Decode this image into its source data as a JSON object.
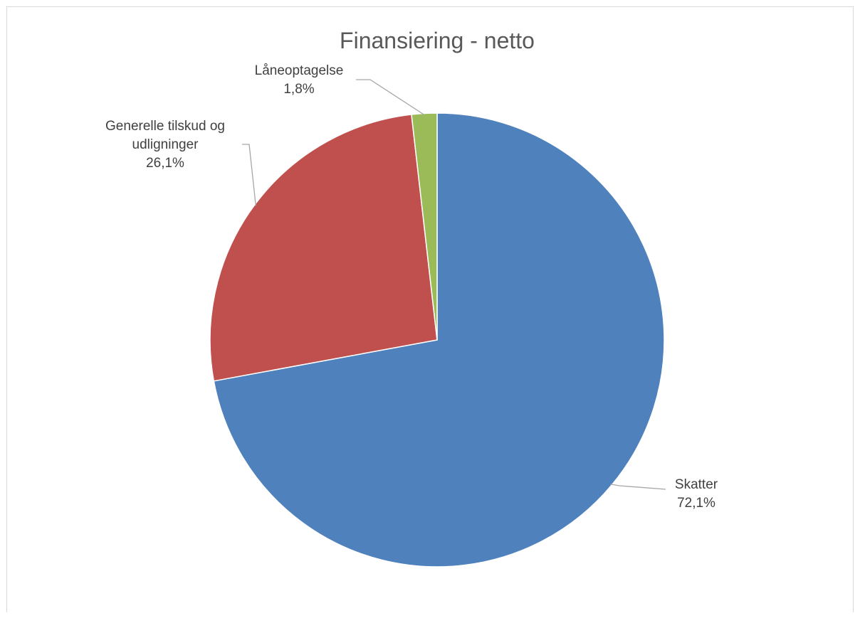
{
  "chart_data": {
    "type": "pie",
    "title": "Finansiering - netto",
    "slices": [
      {
        "label_lines": [
          "Skatter"
        ],
        "value": 72.1,
        "value_label": "72,1%",
        "color": "#4f81bd"
      },
      {
        "label_lines": [
          "Generelle tilskud og",
          "udligninger"
        ],
        "value": 26.1,
        "value_label": "26,1%",
        "color": "#c0504d"
      },
      {
        "label_lines": [
          "Låneoptagelse"
        ],
        "value": 1.8,
        "value_label": "1,8%",
        "color": "#9bbb59"
      }
    ],
    "start_angle_deg": 0,
    "direction": "clockwise",
    "legend": "none",
    "data_labels": "outside-with-leader-lines"
  }
}
